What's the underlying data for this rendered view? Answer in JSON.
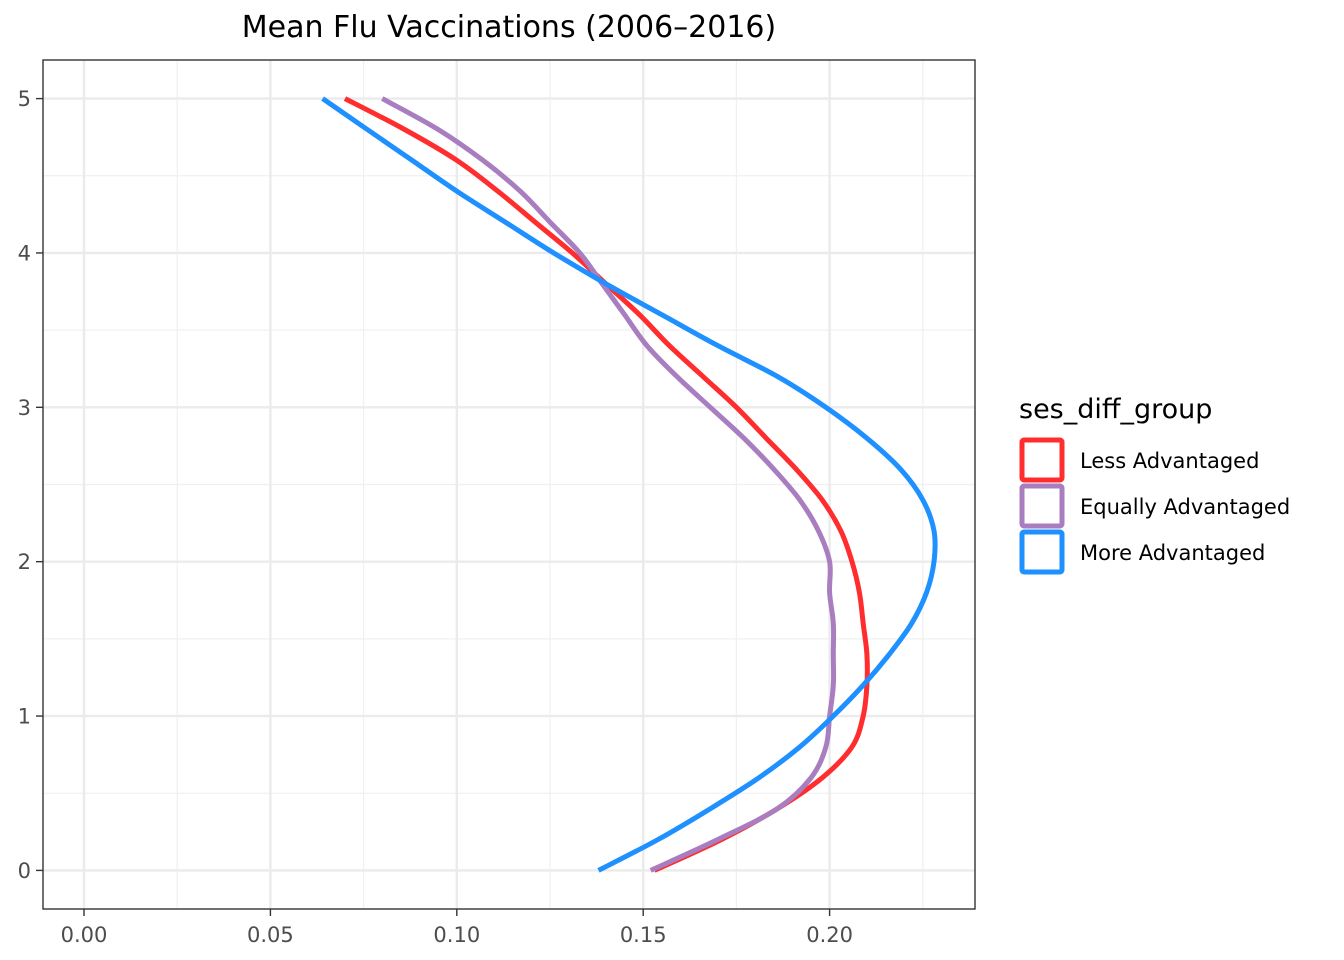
{
  "chart_data": {
    "type": "line",
    "title": "Mean Flu Vaccinations (2006–2016)",
    "xlabel": "",
    "ylabel": "",
    "xlim": [
      -0.011,
      0.239
    ],
    "ylim": [
      -0.25,
      5.25
    ],
    "x_ticks": [
      "0.00",
      "0.05",
      "0.10",
      "0.15",
      "0.20"
    ],
    "y_ticks": [
      "0",
      "1",
      "2",
      "3",
      "4",
      "5"
    ],
    "grid": true,
    "legend_title": "ses_diff_group",
    "legend_position": "right",
    "series": [
      {
        "name": "Less Advantaged",
        "color": "#ff2d2d",
        "points": [
          {
            "y": 0.0,
            "x": 0.153
          },
          {
            "y": 0.2,
            "x": 0.171
          },
          {
            "y": 0.4,
            "x": 0.186
          },
          {
            "y": 0.6,
            "x": 0.198
          },
          {
            "y": 0.8,
            "x": 0.206
          },
          {
            "y": 1.0,
            "x": 0.209
          },
          {
            "y": 1.2,
            "x": 0.21
          },
          {
            "y": 1.4,
            "x": 0.21
          },
          {
            "y": 1.6,
            "x": 0.209
          },
          {
            "y": 1.8,
            "x": 0.208
          },
          {
            "y": 2.0,
            "x": 0.206
          },
          {
            "y": 2.2,
            "x": 0.203
          },
          {
            "y": 2.4,
            "x": 0.198
          },
          {
            "y": 2.6,
            "x": 0.191
          },
          {
            "y": 2.8,
            "x": 0.183
          },
          {
            "y": 3.0,
            "x": 0.175
          },
          {
            "y": 3.2,
            "x": 0.166
          },
          {
            "y": 3.4,
            "x": 0.157
          },
          {
            "y": 3.6,
            "x": 0.149
          },
          {
            "y": 3.8,
            "x": 0.14
          },
          {
            "y": 4.0,
            "x": 0.131
          },
          {
            "y": 4.2,
            "x": 0.121
          },
          {
            "y": 4.4,
            "x": 0.111
          },
          {
            "y": 4.6,
            "x": 0.1
          },
          {
            "y": 4.8,
            "x": 0.086
          },
          {
            "y": 5.0,
            "x": 0.07
          }
        ]
      },
      {
        "name": "Equally Advantaged",
        "color": "#a97ec0",
        "points": [
          {
            "y": 0.0,
            "x": 0.152
          },
          {
            "y": 0.2,
            "x": 0.17
          },
          {
            "y": 0.4,
            "x": 0.186
          },
          {
            "y": 0.6,
            "x": 0.195
          },
          {
            "y": 0.8,
            "x": 0.199
          },
          {
            "y": 1.0,
            "x": 0.2
          },
          {
            "y": 1.2,
            "x": 0.201
          },
          {
            "y": 1.4,
            "x": 0.201
          },
          {
            "y": 1.6,
            "x": 0.201
          },
          {
            "y": 1.8,
            "x": 0.2
          },
          {
            "y": 2.0,
            "x": 0.2
          },
          {
            "y": 2.2,
            "x": 0.197
          },
          {
            "y": 2.4,
            "x": 0.192
          },
          {
            "y": 2.6,
            "x": 0.185
          },
          {
            "y": 2.8,
            "x": 0.177
          },
          {
            "y": 3.0,
            "x": 0.168
          },
          {
            "y": 3.2,
            "x": 0.159
          },
          {
            "y": 3.4,
            "x": 0.151
          },
          {
            "y": 3.6,
            "x": 0.145
          },
          {
            "y": 3.8,
            "x": 0.139
          },
          {
            "y": 4.0,
            "x": 0.133
          },
          {
            "y": 4.2,
            "x": 0.125
          },
          {
            "y": 4.4,
            "x": 0.117
          },
          {
            "y": 4.6,
            "x": 0.107
          },
          {
            "y": 4.8,
            "x": 0.095
          },
          {
            "y": 5.0,
            "x": 0.08
          }
        ]
      },
      {
        "name": "More Advantaged",
        "color": "#1e90ff",
        "points": [
          {
            "y": 0.0,
            "x": 0.138
          },
          {
            "y": 0.2,
            "x": 0.154
          },
          {
            "y": 0.4,
            "x": 0.168
          },
          {
            "y": 0.6,
            "x": 0.181
          },
          {
            "y": 0.8,
            "x": 0.192
          },
          {
            "y": 1.0,
            "x": 0.201
          },
          {
            "y": 1.2,
            "x": 0.209
          },
          {
            "y": 1.4,
            "x": 0.216
          },
          {
            "y": 1.6,
            "x": 0.222
          },
          {
            "y": 1.8,
            "x": 0.226
          },
          {
            "y": 2.0,
            "x": 0.228
          },
          {
            "y": 2.2,
            "x": 0.228
          },
          {
            "y": 2.4,
            "x": 0.225
          },
          {
            "y": 2.6,
            "x": 0.219
          },
          {
            "y": 2.8,
            "x": 0.21
          },
          {
            "y": 3.0,
            "x": 0.199
          },
          {
            "y": 3.2,
            "x": 0.186
          },
          {
            "y": 3.4,
            "x": 0.17
          },
          {
            "y": 3.6,
            "x": 0.155
          },
          {
            "y": 3.8,
            "x": 0.14
          },
          {
            "y": 4.0,
            "x": 0.126
          },
          {
            "y": 4.2,
            "x": 0.113
          },
          {
            "y": 4.4,
            "x": 0.1
          },
          {
            "y": 4.6,
            "x": 0.088
          },
          {
            "y": 4.8,
            "x": 0.076
          },
          {
            "y": 5.0,
            "x": 0.064
          }
        ]
      }
    ]
  }
}
